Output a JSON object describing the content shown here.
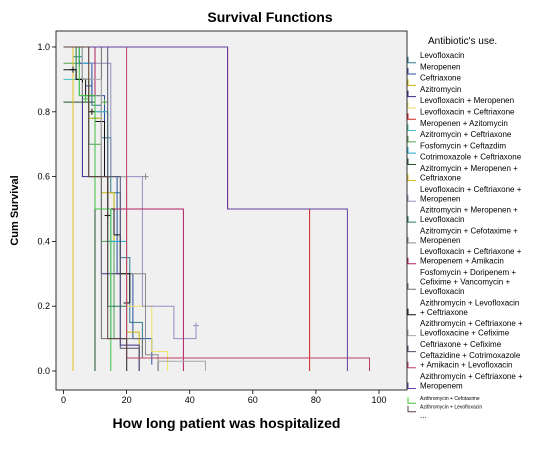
{
  "chart_data": {
    "type": "line",
    "title": "Survival Functions",
    "xlabel": "How long patient was hospitalized",
    "ylabel": "Cum Survival",
    "xlim": [
      0,
      100
    ],
    "ylim": [
      0,
      1.0
    ],
    "x_ticks": [
      "0",
      "20",
      "40",
      "60",
      "80",
      "100"
    ],
    "y_ticks": [
      "0.0",
      "0.2",
      "0.4",
      "0.6",
      "0.8",
      "1.0"
    ],
    "legend_title": "Antibiotic's use.",
    "legend_position": "right",
    "series": [
      {
        "name": "Levofloxacin",
        "color": "#2e7d8c",
        "steps": [
          [
            0,
            1.0
          ],
          [
            3,
            0.97
          ],
          [
            6,
            0.9
          ],
          [
            9,
            0.82
          ],
          [
            12,
            0.72
          ],
          [
            15,
            0.55
          ],
          [
            18,
            0.35
          ],
          [
            21,
            0.15
          ],
          [
            25,
            0.05
          ]
        ],
        "censored": [
          [
            5,
            0.95
          ],
          [
            10,
            0.78
          ]
        ]
      },
      {
        "name": "Meropenen",
        "color": "#2a4ea0",
        "steps": [
          [
            0,
            1.0
          ],
          [
            5,
            0.95
          ],
          [
            9,
            0.85
          ],
          [
            13,
            0.6
          ],
          [
            17,
            0.3
          ],
          [
            22,
            0.1
          ],
          [
            28,
            0.02
          ]
        ],
        "censored": [
          [
            8,
            0.88
          ]
        ]
      },
      {
        "name": "Ceftriaxone",
        "color": "#c8b400",
        "steps": [
          [
            0,
            1.0
          ],
          [
            4,
            0.9
          ],
          [
            8,
            0.78
          ],
          [
            12,
            0.55
          ],
          [
            16,
            0.3
          ],
          [
            20,
            0.12
          ],
          [
            24,
            0.03
          ]
        ],
        "censored": [
          [
            6,
            0.85
          ]
        ]
      },
      {
        "name": "Azitromycin",
        "color": "#3a2a8a",
        "steps": [
          [
            0,
            1.0
          ],
          [
            6,
            0.6
          ],
          [
            12,
            0.3
          ],
          [
            18,
            0.08
          ],
          [
            24,
            0.0
          ]
        ],
        "censored": []
      },
      {
        "name": "Levofloxacin + Meropenen",
        "color": "#f0e060",
        "steps": [
          [
            0,
            1.0
          ],
          [
            8,
            0.8
          ],
          [
            14,
            0.5
          ],
          [
            20,
            0.2
          ],
          [
            28,
            0.06
          ],
          [
            33,
            0.0
          ]
        ],
        "censored": []
      },
      {
        "name": "Levofloxacin + Ceftriaxone",
        "color": "#d42020",
        "steps": [
          [
            0,
            1.0
          ],
          [
            52,
            1.0
          ],
          [
            52,
            0.5
          ],
          [
            78,
            0.5
          ],
          [
            78,
            0.0
          ]
        ],
        "censored": []
      },
      {
        "name": "Meropenen + Azitomycin",
        "color": "#40c0c0",
        "steps": [
          [
            0,
            0.9
          ],
          [
            5,
            0.85
          ],
          [
            10,
            0.5
          ],
          [
            15,
            0.1
          ],
          [
            20,
            0.0
          ]
        ],
        "censored": [
          [
            12,
            0.8
          ]
        ]
      },
      {
        "name": "Azitromycin + Ceftriaxone",
        "color": "#50a050",
        "steps": [
          [
            0,
            0.95
          ],
          [
            4,
            0.9
          ],
          [
            8,
            0.7
          ],
          [
            12,
            0.4
          ],
          [
            16,
            0.1
          ],
          [
            20,
            0.0
          ]
        ],
        "censored": [
          [
            13,
            0.83
          ]
        ]
      },
      {
        "name": "Fosfomycin + Ceftazdim",
        "color": "#20a8d0",
        "steps": [
          [
            0,
            1.0
          ],
          [
            6,
            0.95
          ],
          [
            10,
            0.8
          ],
          [
            14,
            0.4
          ],
          [
            20,
            0.0
          ]
        ],
        "censored": []
      },
      {
        "name": "Cotrimoxazole + Ceftriaxone",
        "color": "#205030",
        "steps": [
          [
            0,
            0.83
          ],
          [
            10,
            0.83
          ],
          [
            10,
            0.0
          ]
        ],
        "censored": []
      },
      {
        "name": "Azitromycin + Meropenen + Ceftriaxone",
        "color": "#e0c020",
        "steps": [
          [
            0,
            1.0
          ],
          [
            3,
            0.5
          ],
          [
            3,
            0.0
          ]
        ],
        "censored": []
      },
      {
        "name": "Levofloxacin + Ceftriaxone + Meropenen",
        "color": "#9090c0",
        "steps": [
          [
            0,
            1.0
          ],
          [
            8,
            0.95
          ],
          [
            15,
            0.6
          ],
          [
            25,
            0.2
          ],
          [
            35,
            0.1
          ],
          [
            42,
            0.14
          ]
        ],
        "censored": [
          [
            42,
            0.14
          ]
        ]
      },
      {
        "name": "Azitromycin + Meropenen + Levofloxacin",
        "color": "#2a7a5a",
        "steps": [
          [
            0,
            1.0
          ],
          [
            4,
            0.9
          ],
          [
            8,
            0.6
          ],
          [
            14,
            0.2
          ],
          [
            20,
            0.0
          ]
        ],
        "censored": []
      },
      {
        "name": "Azitromycin + Cefotaxime + Meropenen",
        "color": "#8a8a8a",
        "steps": [
          [
            0,
            1.0
          ],
          [
            6,
            0.85
          ],
          [
            12,
            0.6
          ],
          [
            20,
            0.3
          ],
          [
            26,
            0.05
          ],
          [
            30,
            0.0
          ]
        ],
        "censored": [
          [
            26,
            0.6
          ]
        ]
      },
      {
        "name": "Levofloxacin + Ceftriaxone + Meropenem + Amikacin",
        "color": "#b02060",
        "steps": [
          [
            0,
            1.0
          ],
          [
            10,
            0.5
          ],
          [
            38,
            0.04
          ],
          [
            38,
            0.0
          ]
        ],
        "censored": []
      },
      {
        "name": "Fosfomycin + Doripenem + Cefixime + Vancomycin + Levofloxacin",
        "color": "#707070",
        "steps": [
          [
            0,
            1.0
          ],
          [
            12,
            0.1
          ],
          [
            25,
            0.04
          ],
          [
            30,
            0.0
          ]
        ],
        "censored": []
      },
      {
        "name": "Azithromycin + Levofloxacin + Ceftriaxone",
        "color": "#101010",
        "steps": [
          [
            0,
            0.93
          ],
          [
            4,
            0.9
          ],
          [
            7,
            0.85
          ],
          [
            10,
            0.77
          ],
          [
            13,
            0.6
          ],
          [
            14,
            0.5
          ],
          [
            16,
            0.42
          ],
          [
            18,
            0.3
          ],
          [
            21,
            0.21
          ]
        ],
        "censored": [
          [
            3,
            0.93
          ],
          [
            6,
            0.9
          ],
          [
            9,
            0.8
          ],
          [
            14,
            0.48
          ],
          [
            20,
            0.21
          ]
        ]
      },
      {
        "name": "Azithromycin + Ceftriaxone + Levofloxacine + Cefixime",
        "color": "#a8a8a8",
        "steps": [
          [
            0,
            1.0
          ],
          [
            6,
            0.9
          ],
          [
            12,
            0.6
          ],
          [
            20,
            0.04
          ],
          [
            30,
            0.03
          ],
          [
            45,
            0.0
          ]
        ],
        "censored": []
      },
      {
        "name": "Ceftriaxone + Cefixime",
        "color": "#505070",
        "steps": [
          [
            0,
            1.0
          ],
          [
            14,
            0.6
          ],
          [
            18,
            0.07
          ],
          [
            24,
            0.0
          ]
        ],
        "censored": []
      },
      {
        "name": "Ceftazidine + Cotrimoxazole + Amikacin + Levofloxacin",
        "color": "#c04060",
        "steps": [
          [
            0,
            1.0
          ],
          [
            20,
            0.04
          ],
          [
            97,
            0.04
          ],
          [
            97,
            0.0
          ]
        ],
        "censored": []
      },
      {
        "name": "Azithromycin + Ceftriaxone + Meropenem",
        "color": "#6040a0",
        "steps": [
          [
            0,
            1.0
          ],
          [
            52,
            1.0
          ],
          [
            52,
            0.5
          ],
          [
            90,
            0.5
          ],
          [
            90,
            0.0
          ]
        ],
        "censored": []
      },
      {
        "name": "Azithromycin + Cefotaxime",
        "color": "#40c040",
        "steps": [
          [
            0,
            1.0
          ],
          [
            5,
            0.85
          ],
          [
            10,
            0.5
          ],
          [
            15,
            0.0
          ]
        ],
        "censored": [
          [
            7,
            0.84
          ]
        ]
      },
      {
        "name": "Azithromycin + Levofloxacin",
        "color": "#604040",
        "steps": [
          [
            0,
            1.0
          ],
          [
            8,
            0.6
          ],
          [
            14,
            0.1
          ],
          [
            20,
            0.0
          ]
        ],
        "censored": []
      }
    ],
    "legend_more": "..."
  }
}
